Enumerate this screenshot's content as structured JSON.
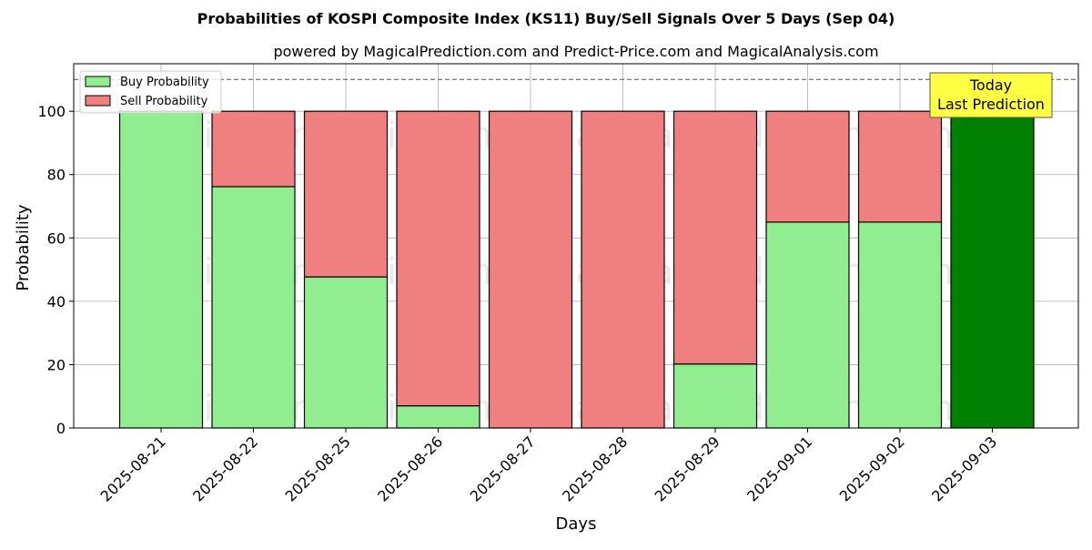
{
  "chart_data": {
    "type": "bar",
    "stacked": true,
    "title": "Probabilities of KOSPI Composite Index (KS11) Buy/Sell Signals Over 5 Days (Sep 04)",
    "subtitle": "powered by MagicalPrediction.com and Predict-Price.com and MagicalAnalysis.com",
    "xlabel": "Days",
    "ylabel": "Probability",
    "ylim": [
      0,
      115
    ],
    "yticks": [
      0,
      20,
      40,
      60,
      80,
      100
    ],
    "grid": true,
    "legend_position": "top-left",
    "reference_line": 110,
    "categories": [
      "2025-08-21",
      "2025-08-22",
      "2025-08-25",
      "2025-08-26",
      "2025-08-27",
      "2025-08-28",
      "2025-08-29",
      "2025-09-01",
      "2025-09-02",
      "2025-09-03"
    ],
    "series": [
      {
        "name": "Buy Probability",
        "color": "#90ee90",
        "values": [
          100,
          76.2,
          47.7,
          7,
          0,
          0,
          20.2,
          65,
          65,
          100
        ]
      },
      {
        "name": "Sell Probability",
        "color": "#f08080",
        "values": [
          0,
          23.8,
          52.3,
          93,
          100,
          100,
          79.8,
          35,
          35,
          0
        ]
      }
    ],
    "highlight": {
      "index": 9,
      "color": "#008000"
    },
    "annotation": {
      "line1": "Today",
      "line2": "Last Prediction",
      "color": "#ffff44"
    },
    "watermarks": [
      "MagicalAnalysis.com",
      "MagicalPrediction.com"
    ]
  }
}
